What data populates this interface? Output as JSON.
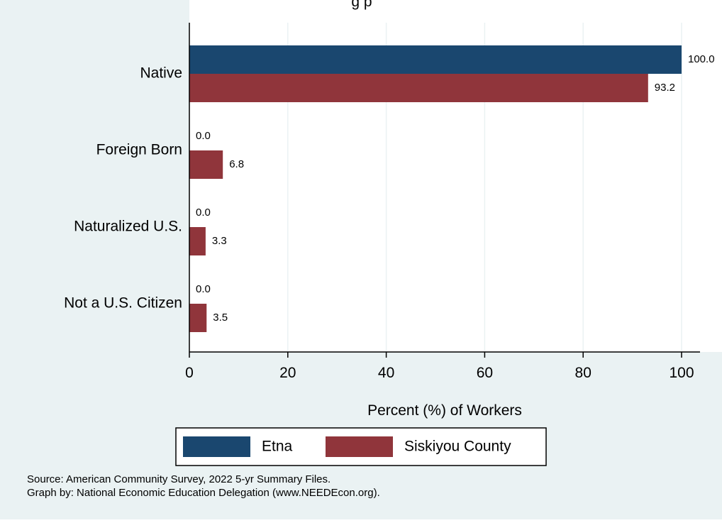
{
  "chart_data": {
    "type": "bar",
    "orientation": "horizontal",
    "title": "g               p",
    "xlabel": "Percent (%) of Workers",
    "ylabel": "",
    "categories": [
      "Native",
      "Foreign Born",
      "Naturalized U.S.",
      "Not a U.S. Citizen"
    ],
    "series": [
      {
        "name": "Etna",
        "color": "#1a476f",
        "values": [
          100.0,
          0.0,
          0.0,
          0.0
        ],
        "labels": [
          "100.0",
          "0.0",
          "0.0",
          "0.0"
        ]
      },
      {
        "name": "Siskiyou County",
        "color": "#90353b",
        "values": [
          93.2,
          6.8,
          3.3,
          3.5
        ],
        "labels": [
          "93.2",
          "6.8",
          "3.3",
          "3.5"
        ]
      }
    ],
    "xlim": [
      0,
      100
    ],
    "xticks": [
      0,
      20,
      40,
      60,
      80,
      100
    ],
    "grid": true,
    "legend_position": "bottom"
  },
  "notes": {
    "source": "Source: American Community Survey, 2022 5-yr Summary Files.",
    "credit": "Graph by: National Economic Education Delegation (www.NEEDEcon.org)."
  },
  "colors": {
    "background": "#eaf2f3",
    "plot_background": "#ffffff",
    "grid": "#eaf2f3"
  }
}
